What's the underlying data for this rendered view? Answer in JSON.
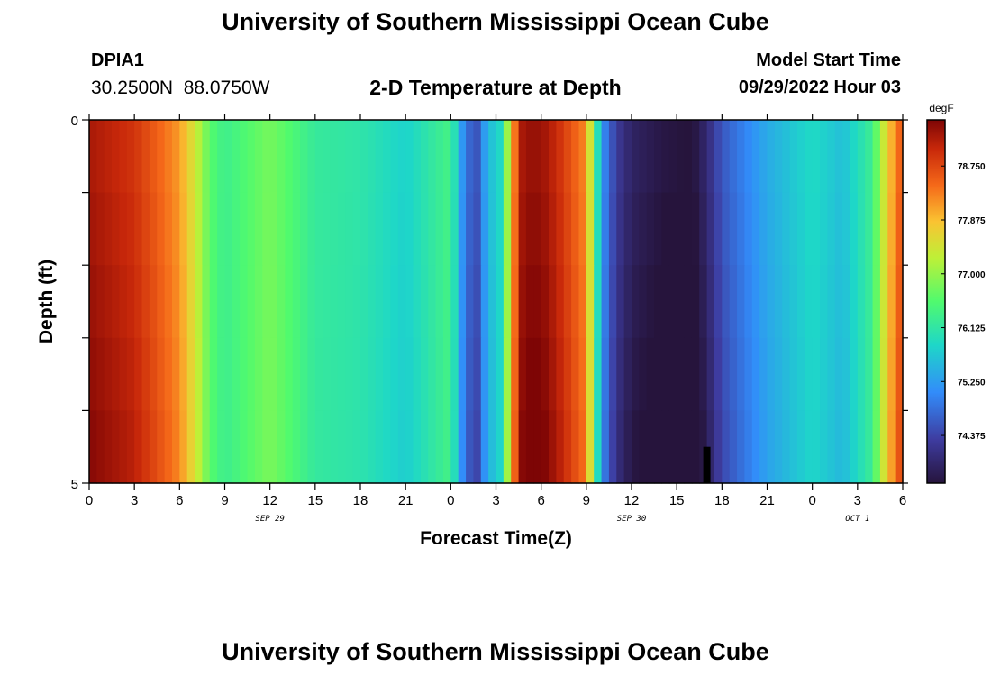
{
  "header": {
    "title": "University of Southern Mississippi Ocean Cube",
    "station_id": "DPIA1",
    "coordinates": "30.2500N  88.0750W",
    "subtitle": "2-D Temperature at Depth",
    "model_start_label": "Model Start Time",
    "model_start_value": "09/29/2022 Hour 03"
  },
  "footer": {
    "title": "University of Southern Mississippi Ocean Cube"
  },
  "colors": {
    "background": "#ffffff",
    "marker": "#000000"
  },
  "chart_data": {
    "type": "heatmap",
    "title": "2-D Temperature at Depth",
    "xlabel": "Forecast Time(Z)",
    "ylabel": "Depth (ft)",
    "xlim": [
      0,
      54
    ],
    "ylim": [
      0,
      5
    ],
    "x_ticks": [
      0,
      3,
      6,
      9,
      12,
      15,
      18,
      21,
      24,
      27,
      30,
      33,
      36,
      39,
      42,
      45,
      48,
      51,
      54
    ],
    "x_tick_labels": [
      "0",
      "3",
      "6",
      "9",
      "12",
      "15",
      "18",
      "21",
      "0",
      "3",
      "6",
      "9",
      "12",
      "15",
      "18",
      "21",
      "0",
      "3",
      "6"
    ],
    "date_labels": [
      {
        "text": "SEP 29",
        "x": 12
      },
      {
        "text": "SEP 30",
        "x": 36
      },
      {
        "text": "OCT 1",
        "x": 51
      }
    ],
    "y_tick_labels": [
      {
        "text": "0",
        "y": 0
      },
      {
        "text": "5",
        "y": 5
      }
    ],
    "depth_levels": [
      0,
      1,
      2,
      3,
      4,
      5
    ],
    "colorbar": {
      "unit": "degF",
      "min": 73.6,
      "max": 79.5,
      "tick_values": [
        78.75,
        77.875,
        77.0,
        76.125,
        75.25,
        74.375
      ],
      "tick_labels": [
        "78.750",
        "77.875",
        "77.000",
        "76.125",
        "75.250",
        "74.375"
      ]
    },
    "series": [
      {
        "name": "Temperature",
        "time_hours": [
          0,
          3,
          6,
          7,
          8,
          9,
          12,
          15,
          18,
          21,
          24,
          25,
          26,
          26.5,
          27,
          28,
          28.5,
          29,
          30,
          31,
          33,
          34,
          35,
          36,
          38,
          40,
          41,
          42,
          45,
          48,
          50,
          52,
          53,
          54
        ],
        "temperature_degF": [
          79.2,
          78.9,
          78.1,
          77.4,
          76.6,
          76.3,
          76.8,
          76.2,
          76.1,
          75.8,
          76.4,
          74.8,
          74.5,
          76.0,
          75.3,
          77.6,
          79.1,
          79.3,
          79.3,
          79.0,
          78.2,
          75.2,
          74.3,
          73.9,
          73.7,
          73.6,
          74.0,
          74.6,
          75.4,
          75.9,
          75.6,
          76.3,
          77.7,
          78.7
        ]
      }
    ],
    "annotations": [
      {
        "type": "marker",
        "x": 41,
        "y_from": 4.5,
        "y_to": 5
      }
    ]
  }
}
